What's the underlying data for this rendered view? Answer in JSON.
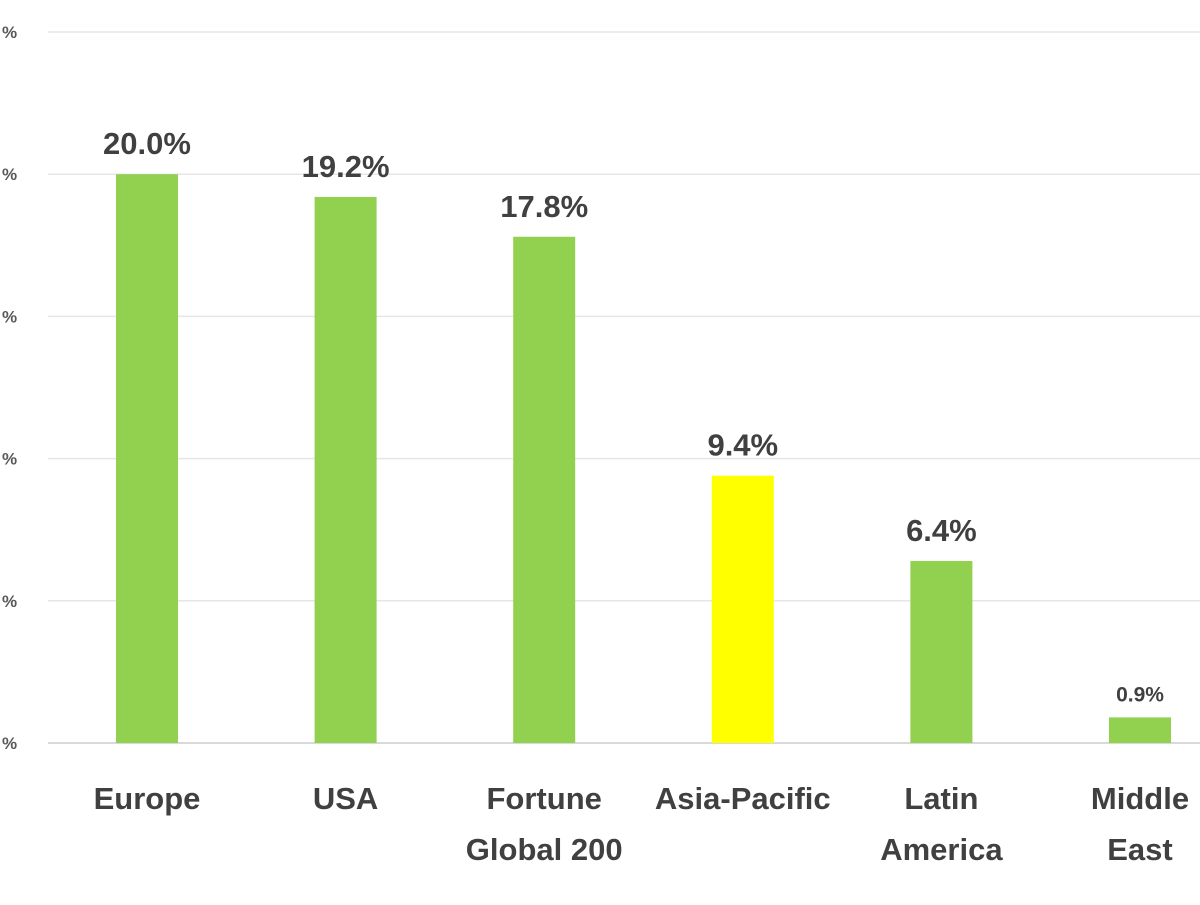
{
  "chart_data": {
    "type": "bar",
    "categories": [
      [
        "Europe"
      ],
      [
        "USA"
      ],
      [
        "Fortune",
        "Global 200"
      ],
      [
        "Asia-Pacific"
      ],
      [
        "Latin",
        "America"
      ],
      [
        "Middle",
        "East"
      ]
    ],
    "values": [
      20.0,
      19.2,
      17.8,
      9.4,
      6.4,
      0.9
    ],
    "data_labels": [
      "20.0%",
      "19.2%",
      "17.8%",
      "9.4%",
      "6.4%",
      "0.9%"
    ],
    "bar_colors": [
      "#92d050",
      "#92d050",
      "#92d050",
      "#ffff00",
      "#92d050",
      "#92d050"
    ],
    "y_ticks": [
      0,
      5,
      10,
      15,
      20,
      25
    ],
    "y_tick_labels": [
      "%",
      "%",
      "%",
      "%",
      "%",
      "%"
    ],
    "ylim": [
      0,
      25
    ],
    "grid": true,
    "legend": "none",
    "colors": {
      "grid": "#e6e6e6",
      "axis_line": "#d9d9d9",
      "label_text": "#404040",
      "tick_text": "#595959"
    }
  }
}
